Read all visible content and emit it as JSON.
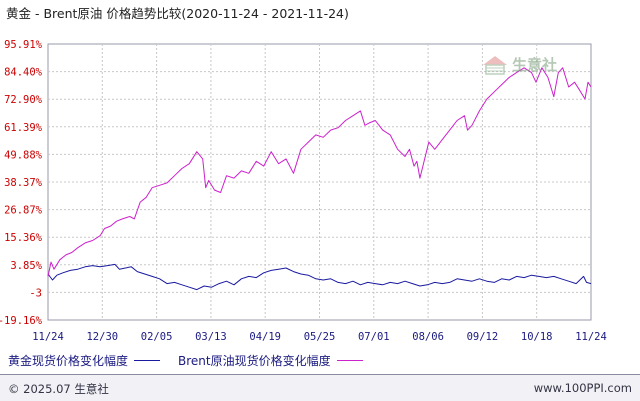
{
  "title": "黄金 - Brent原油 价格趋势比较(2020-11-24 - 2021-11-24)",
  "watermark": "生意社",
  "footer": {
    "left": "© 2025.07 生意社",
    "right": "www.100PPI.com"
  },
  "colors": {
    "gold": "#1a1aa0",
    "brent": "#cc22cc",
    "axis_text_y": "#cc0000",
    "axis_text_x": "#1a1a80",
    "grid": "#c8c8c8"
  },
  "chart_data": {
    "type": "line",
    "title": "黄金 - Brent原油 价格趋势比较(2020-11-24 - 2021-11-24)",
    "xlabel": "",
    "ylabel": "",
    "x_ticks": [
      "11/24",
      "12/30",
      "02/05",
      "03/13",
      "04/19",
      "05/25",
      "07/01",
      "08/06",
      "09/12",
      "10/18",
      "11/24"
    ],
    "y_ticks": [
      "95.91%",
      "84.40%",
      "72.90%",
      "61.39%",
      "49.88%",
      "38.37%",
      "26.87%",
      "15.36%",
      "3.85%",
      "-3",
      "-19.16%"
    ],
    "ylim": [
      -19.16,
      95.91
    ],
    "grid": true,
    "legend_position": "bottom",
    "series": [
      {
        "name": "黄金现货价格变化幅度",
        "color": "#1a1aa0",
        "points": [
          [
            0,
            0
          ],
          [
            3,
            -2.5
          ],
          [
            6,
            -0.5
          ],
          [
            10,
            0.5
          ],
          [
            15,
            1.5
          ],
          [
            20,
            2
          ],
          [
            25,
            3
          ],
          [
            30,
            3.5
          ],
          [
            35,
            3
          ],
          [
            40,
            3.5
          ],
          [
            45,
            4
          ],
          [
            48,
            2
          ],
          [
            52,
            2.5
          ],
          [
            56,
            3
          ],
          [
            60,
            1
          ],
          [
            65,
            0
          ],
          [
            70,
            -1
          ],
          [
            75,
            -2
          ],
          [
            80,
            -4
          ],
          [
            85,
            -3.5
          ],
          [
            90,
            -4.5
          ],
          [
            95,
            -5.5
          ],
          [
            100,
            -6.5
          ],
          [
            105,
            -5
          ],
          [
            110,
            -5.5
          ],
          [
            115,
            -4
          ],
          [
            120,
            -3
          ],
          [
            125,
            -4.5
          ],
          [
            130,
            -2
          ],
          [
            135,
            -1
          ],
          [
            140,
            -1.5
          ],
          [
            145,
            0.5
          ],
          [
            150,
            1.5
          ],
          [
            155,
            2
          ],
          [
            160,
            2.5
          ],
          [
            165,
            1
          ],
          [
            170,
            0
          ],
          [
            175,
            -0.5
          ],
          [
            180,
            -2
          ],
          [
            185,
            -2.5
          ],
          [
            190,
            -2
          ],
          [
            195,
            -3.5
          ],
          [
            200,
            -4
          ],
          [
            205,
            -3
          ],
          [
            210,
            -4.5
          ],
          [
            215,
            -3.5
          ],
          [
            220,
            -4
          ],
          [
            225,
            -4.5
          ],
          [
            230,
            -3.5
          ],
          [
            235,
            -4
          ],
          [
            240,
            -3
          ],
          [
            245,
            -4
          ],
          [
            250,
            -5
          ],
          [
            255,
            -4.5
          ],
          [
            260,
            -3.5
          ],
          [
            265,
            -4
          ],
          [
            270,
            -3.5
          ],
          [
            275,
            -2
          ],
          [
            280,
            -2.5
          ],
          [
            285,
            -3
          ],
          [
            290,
            -2
          ],
          [
            295,
            -3
          ],
          [
            300,
            -3.5
          ],
          [
            305,
            -2
          ],
          [
            310,
            -2.5
          ],
          [
            315,
            -1
          ],
          [
            320,
            -1.5
          ],
          [
            325,
            -0.5
          ],
          [
            330,
            -1
          ],
          [
            335,
            -1.5
          ],
          [
            340,
            -1
          ],
          [
            345,
            -2
          ],
          [
            350,
            -3
          ],
          [
            355,
            -4
          ],
          [
            360,
            -1
          ],
          [
            362,
            -3.5
          ],
          [
            365,
            -4
          ]
        ]
      },
      {
        "name": "Brent原油现货价格变化幅度",
        "color": "#cc22cc",
        "points": [
          [
            0,
            -1
          ],
          [
            2,
            5
          ],
          [
            4,
            2
          ],
          [
            8,
            6
          ],
          [
            12,
            8
          ],
          [
            16,
            9
          ],
          [
            20,
            11
          ],
          [
            25,
            13
          ],
          [
            30,
            14
          ],
          [
            35,
            16
          ],
          [
            38,
            19
          ],
          [
            42,
            20
          ],
          [
            46,
            22
          ],
          [
            50,
            23
          ],
          [
            55,
            24
          ],
          [
            58,
            23
          ],
          [
            62,
            30
          ],
          [
            66,
            32
          ],
          [
            70,
            36
          ],
          [
            75,
            37
          ],
          [
            80,
            38
          ],
          [
            85,
            41
          ],
          [
            90,
            44
          ],
          [
            95,
            46
          ],
          [
            100,
            51
          ],
          [
            104,
            48
          ],
          [
            106,
            36
          ],
          [
            108,
            39
          ],
          [
            112,
            35
          ],
          [
            116,
            34
          ],
          [
            120,
            41
          ],
          [
            125,
            40
          ],
          [
            130,
            43
          ],
          [
            135,
            42
          ],
          [
            140,
            47
          ],
          [
            145,
            45
          ],
          [
            150,
            51
          ],
          [
            155,
            46
          ],
          [
            160,
            48
          ],
          [
            165,
            42
          ],
          [
            170,
            52
          ],
          [
            175,
            55
          ],
          [
            180,
            58
          ],
          [
            185,
            57
          ],
          [
            190,
            60
          ],
          [
            195,
            61
          ],
          [
            200,
            64
          ],
          [
            205,
            66
          ],
          [
            210,
            68
          ],
          [
            213,
            62
          ],
          [
            216,
            63
          ],
          [
            220,
            64
          ],
          [
            225,
            60
          ],
          [
            230,
            58
          ],
          [
            235,
            52
          ],
          [
            240,
            49
          ],
          [
            243,
            52
          ],
          [
            246,
            45
          ],
          [
            248,
            47
          ],
          [
            250,
            40
          ],
          [
            252,
            45
          ],
          [
            256,
            55
          ],
          [
            260,
            52
          ],
          [
            265,
            56
          ],
          [
            270,
            60
          ],
          [
            275,
            64
          ],
          [
            280,
            66
          ],
          [
            282,
            60
          ],
          [
            285,
            62
          ],
          [
            290,
            68
          ],
          [
            295,
            73
          ],
          [
            300,
            76
          ],
          [
            305,
            79
          ],
          [
            310,
            82
          ],
          [
            315,
            84
          ],
          [
            320,
            86
          ],
          [
            325,
            84
          ],
          [
            328,
            80
          ],
          [
            332,
            86
          ],
          [
            336,
            82
          ],
          [
            340,
            74
          ],
          [
            343,
            84
          ],
          [
            346,
            86
          ],
          [
            350,
            78
          ],
          [
            354,
            80
          ],
          [
            358,
            76
          ],
          [
            361,
            73
          ],
          [
            363,
            80
          ],
          [
            365,
            78
          ]
        ]
      }
    ]
  }
}
